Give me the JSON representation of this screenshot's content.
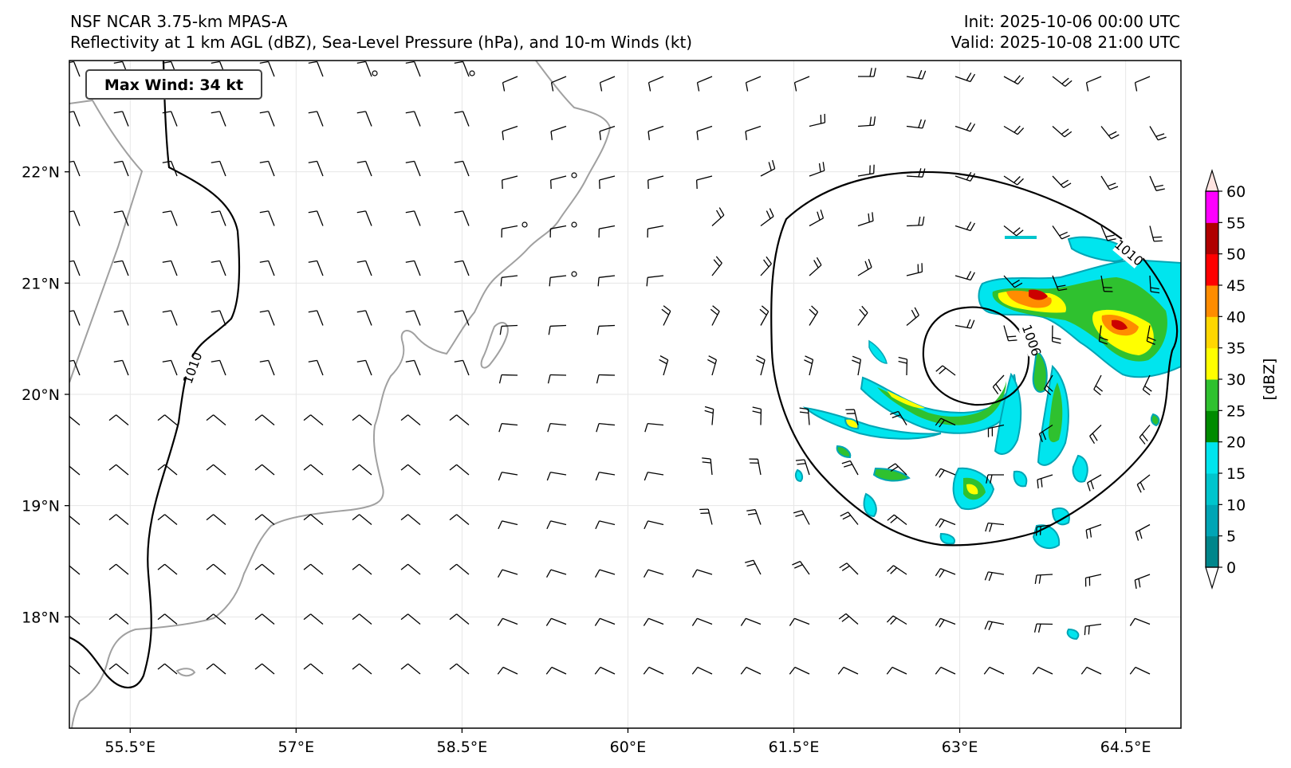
{
  "header": {
    "model": "NSF NCAR 3.75-km MPAS-A",
    "fields": "Reflectivity at 1 km AGL (dBZ), Sea-Level Pressure (hPa), and 10-m Winds (kt)",
    "init": "Init: 2025-10-06 00:00 UTC",
    "valid": "Valid: 2025-10-08 21:00 UTC"
  },
  "max_wind_label": "Max Wind: 34 kt",
  "axes": {
    "lon_labels": [
      "55.5°E",
      "57°E",
      "58.5°E",
      "60°E",
      "61.5°E",
      "63°E",
      "64.5°E"
    ],
    "lon_values": [
      55.5,
      57,
      58.5,
      60,
      61.5,
      63,
      64.5
    ],
    "lat_labels": [
      "22°N",
      "21°N",
      "20°N",
      "19°N",
      "18°N"
    ],
    "lat_values": [
      22,
      21,
      20,
      19,
      18
    ],
    "lon_range": [
      54.95,
      65.0
    ],
    "lat_range": [
      17.0,
      23.0
    ]
  },
  "isobars": [
    {
      "label": "1010",
      "value": 1010
    },
    {
      "label": "1010",
      "value": 1010
    },
    {
      "label": "1006",
      "value": 1006
    }
  ],
  "colorbar": {
    "unit_label": "[dBZ]",
    "tick_labels": [
      "0",
      "5",
      "10",
      "15",
      "20",
      "25",
      "30",
      "35",
      "40",
      "45",
      "50",
      "55",
      "60"
    ],
    "colors": [
      "#ffffff",
      "#00868b",
      "#00a5b5",
      "#00c5cd",
      "#00e5ee",
      "#008b00",
      "#2fc12f",
      "#ffff00",
      "#ffd700",
      "#ff8c00",
      "#ff0000",
      "#b00000",
      "#ff00ff",
      "#ffe4e1"
    ]
  },
  "colors": {
    "coastline": "#a0a0a0",
    "isobar": "#000000",
    "grid": "#e6e6e6"
  }
}
